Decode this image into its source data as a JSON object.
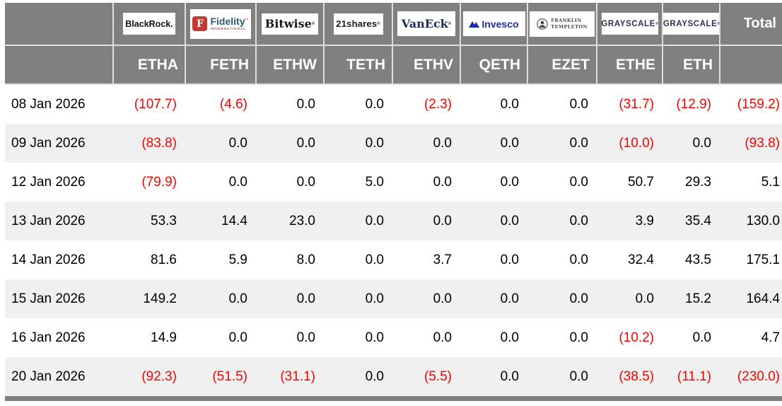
{
  "colors": {
    "header_bg": "#808080",
    "row_stripe": "#f0f0f0",
    "negative_red": "#fe0000",
    "fidelity_red": "#c23a32",
    "fidelity_blue": "#2e5a70",
    "vaneck_navy": "#1f2c56",
    "invesco_blue": "#1c2f9e",
    "grayscale_navy": "#2b3150",
    "franklin_gray": "#4a4a4a"
  },
  "logos": {
    "blackrock": {
      "text": "BlackRock."
    },
    "fidelity": {
      "icon_letter": "F",
      "text": "Fidelity",
      "mark": "™",
      "subtext": "INTERNATIONAL"
    },
    "bitwise": {
      "text": "Bitwise",
      "mark": "®"
    },
    "shares21": {
      "text": "21shares",
      "mark": "®"
    },
    "vaneck": {
      "text": "VanEck",
      "mark": "®"
    },
    "invesco": {
      "text": "Invesco"
    },
    "franklin": {
      "line1": "FRANKLIN",
      "line2": "TEMPLETON"
    },
    "grayscale_ethe": {
      "text": "GRAYSCALE",
      "mark": "®"
    },
    "grayscale_eth": {
      "text": "GRAYSCALE",
      "mark": "®"
    }
  },
  "chart_data": {
    "type": "table",
    "columns": [
      "",
      "ETHA",
      "FETH",
      "ETHW",
      "TETH",
      "ETHV",
      "QETH",
      "EZET",
      "ETHE",
      "ETH",
      "Total"
    ],
    "providers": [
      "BlackRock",
      "Fidelity International",
      "Bitwise",
      "21shares",
      "VanEck",
      "Invesco",
      "Franklin Templeton",
      "Grayscale",
      "Grayscale"
    ],
    "value_format": "one decimal; negatives rendered in red parentheses",
    "rows": [
      {
        "date": "08 Jan 2026",
        "values": [
          -107.7,
          -4.6,
          0.0,
          0.0,
          -2.3,
          0.0,
          0.0,
          -31.7,
          -12.9
        ],
        "total": -159.2
      },
      {
        "date": "09 Jan 2026",
        "values": [
          -83.8,
          0.0,
          0.0,
          0.0,
          0.0,
          0.0,
          0.0,
          -10.0,
          0.0
        ],
        "total": -93.8
      },
      {
        "date": "12 Jan 2026",
        "values": [
          -79.9,
          0.0,
          0.0,
          5.0,
          0.0,
          0.0,
          0.0,
          50.7,
          29.3
        ],
        "total": 5.1
      },
      {
        "date": "13 Jan 2026",
        "values": [
          53.3,
          14.4,
          23.0,
          0.0,
          0.0,
          0.0,
          0.0,
          3.9,
          35.4
        ],
        "total": 130.0
      },
      {
        "date": "14 Jan 2026",
        "values": [
          81.6,
          5.9,
          8.0,
          0.0,
          3.7,
          0.0,
          0.0,
          32.4,
          43.5
        ],
        "total": 175.1
      },
      {
        "date": "15 Jan 2026",
        "values": [
          149.2,
          0.0,
          0.0,
          0.0,
          0.0,
          0.0,
          0.0,
          0.0,
          15.2
        ],
        "total": 164.4
      },
      {
        "date": "16 Jan 2026",
        "values": [
          14.9,
          0.0,
          0.0,
          0.0,
          0.0,
          0.0,
          0.0,
          -10.2,
          0.0
        ],
        "total": 4.7
      },
      {
        "date": "20 Jan 2026",
        "values": [
          -92.3,
          -51.5,
          -31.1,
          0.0,
          -5.5,
          0.0,
          0.0,
          -38.5,
          -11.1
        ],
        "total": -230.0
      }
    ]
  }
}
